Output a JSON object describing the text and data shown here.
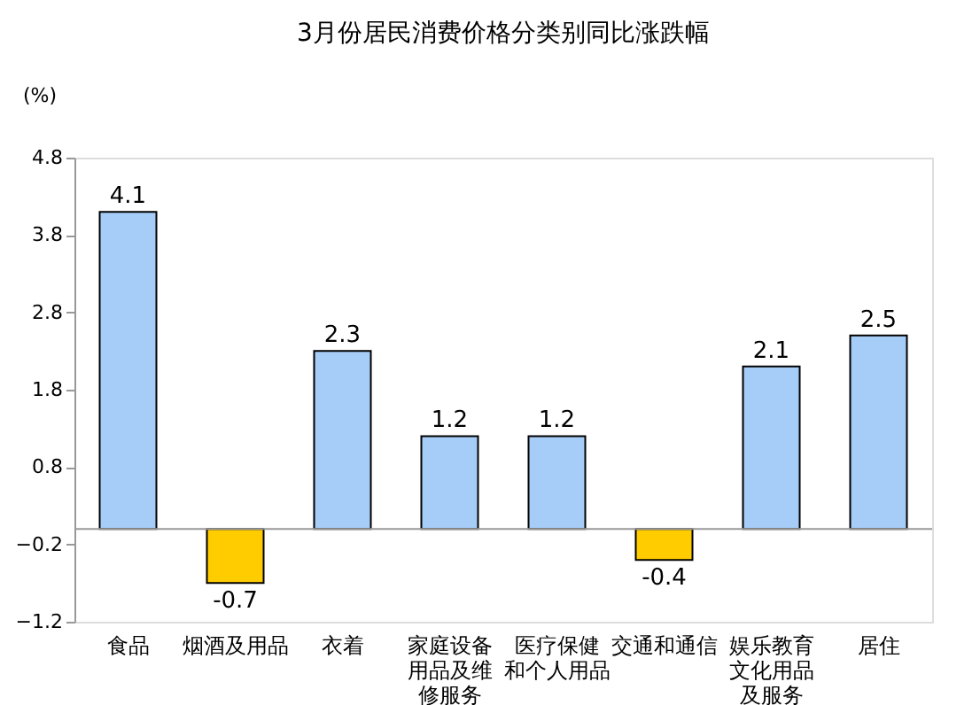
{
  "chart_data": {
    "type": "bar",
    "title": "3月份居民消费价格分类别同比涨跌幅",
    "ylabel": "(%)",
    "categories": [
      "食品",
      "烟酒及用品",
      "衣着",
      "家庭设备用品及维修服务",
      "医疗保健和个人用品",
      "交通和通信",
      "娱乐教育文化用品及服务",
      "居住"
    ],
    "values": [
      4.1,
      -0.7,
      2.3,
      1.2,
      1.2,
      -0.4,
      2.1,
      2.5
    ],
    "colors": [
      "#a6cdf7",
      "#ffcc00",
      "#a6cdf7",
      "#a6cdf7",
      "#a6cdf7",
      "#ffcc00",
      "#a6cdf7",
      "#a6cdf7"
    ],
    "ylim": [
      -1.2,
      4.8
    ],
    "yticks": [
      -1.2,
      -0.2,
      0.8,
      1.8,
      2.8,
      3.8,
      4.8
    ],
    "ref_lines": [
      {
        "axis": "y",
        "value": 0,
        "color": "#999999"
      }
    ],
    "data_labels": true,
    "grid": false
  }
}
